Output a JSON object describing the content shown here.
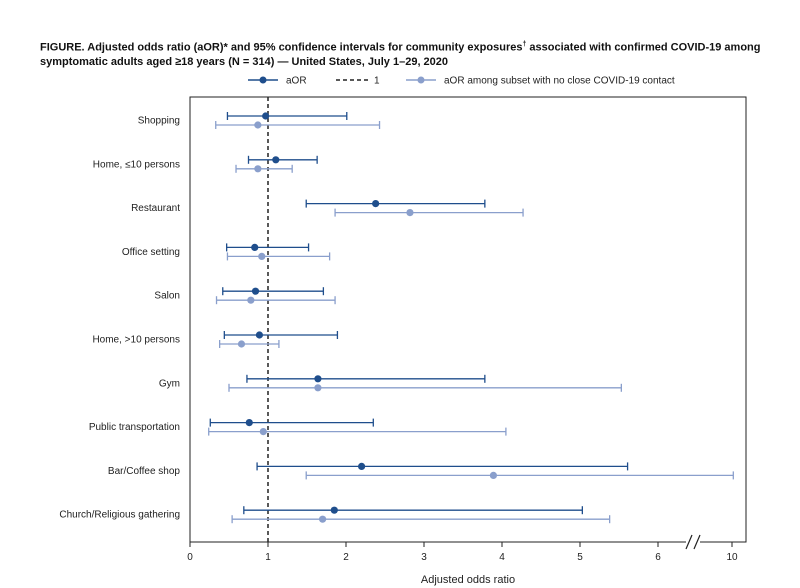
{
  "figure": {
    "title_main": "FIGURE. Adjusted odds ratio (aOR)* and 95% confidence intervals for community exposures",
    "title_dagger": "†",
    "title_rest": " associated with confirmed COVID-19 among",
    "title_line2": "symptomatic adults aged ≥18 years (N = 314) — United States, July 1–29, 2020"
  },
  "chart_data": {
    "type": "forest",
    "xlabel": "Adjusted odds ratio",
    "reference_line": 1,
    "axis_break": true,
    "x_ticks": [
      0,
      1,
      2,
      3,
      4,
      5,
      6,
      10
    ],
    "x_tick_labels": [
      "0",
      "1",
      "2",
      "3",
      "4",
      "5",
      "6",
      "10"
    ],
    "categories": [
      "Shopping",
      "Home, ≤10 persons",
      "Restaurant",
      "Office setting",
      "Salon",
      "Home, >10 persons",
      "Gym",
      "Public transportation",
      "Bar/Coffee shop",
      "Church/Religious gathering"
    ],
    "series": [
      {
        "name": "aOR",
        "color": "#1f4e8c",
        "points": [
          {
            "value": 0.97,
            "low": 0.48,
            "high": 2.01
          },
          {
            "value": 1.1,
            "low": 0.75,
            "high": 1.63
          },
          {
            "value": 2.38,
            "low": 1.49,
            "high": 3.78
          },
          {
            "value": 0.83,
            "low": 0.47,
            "high": 1.52
          },
          {
            "value": 0.84,
            "low": 0.42,
            "high": 1.71
          },
          {
            "value": 0.89,
            "low": 0.44,
            "high": 1.89
          },
          {
            "value": 1.64,
            "low": 0.73,
            "high": 3.78
          },
          {
            "value": 0.76,
            "low": 0.26,
            "high": 2.35
          },
          {
            "value": 2.2,
            "low": 0.86,
            "high": 5.61
          },
          {
            "value": 1.85,
            "low": 0.69,
            "high": 5.03
          }
        ]
      },
      {
        "name": "aOR among subset with no close COVID-19 contact",
        "color": "#8a9fcc",
        "points": [
          {
            "value": 0.87,
            "low": 0.33,
            "high": 2.43
          },
          {
            "value": 0.87,
            "low": 0.59,
            "high": 1.31
          },
          {
            "value": 2.82,
            "low": 1.86,
            "high": 4.27
          },
          {
            "value": 0.92,
            "low": 0.48,
            "high": 1.79
          },
          {
            "value": 0.78,
            "low": 0.34,
            "high": 1.86
          },
          {
            "value": 0.66,
            "low": 0.38,
            "high": 1.14
          },
          {
            "value": 1.64,
            "low": 0.5,
            "high": 5.53
          },
          {
            "value": 0.94,
            "low": 0.24,
            "high": 4.05
          },
          {
            "value": 3.89,
            "low": 1.49,
            "high": 10.11
          },
          {
            "value": 1.7,
            "low": 0.54,
            "high": 5.38
          }
        ]
      }
    ],
    "legend": [
      {
        "label": "aOR",
        "style": "marker",
        "color": "#1f4e8c"
      },
      {
        "label": "1",
        "style": "dashed",
        "color": "#222222"
      },
      {
        "label": "aOR among subset with no close COVID-19 contact",
        "style": "marker",
        "color": "#8a9fcc"
      }
    ]
  }
}
